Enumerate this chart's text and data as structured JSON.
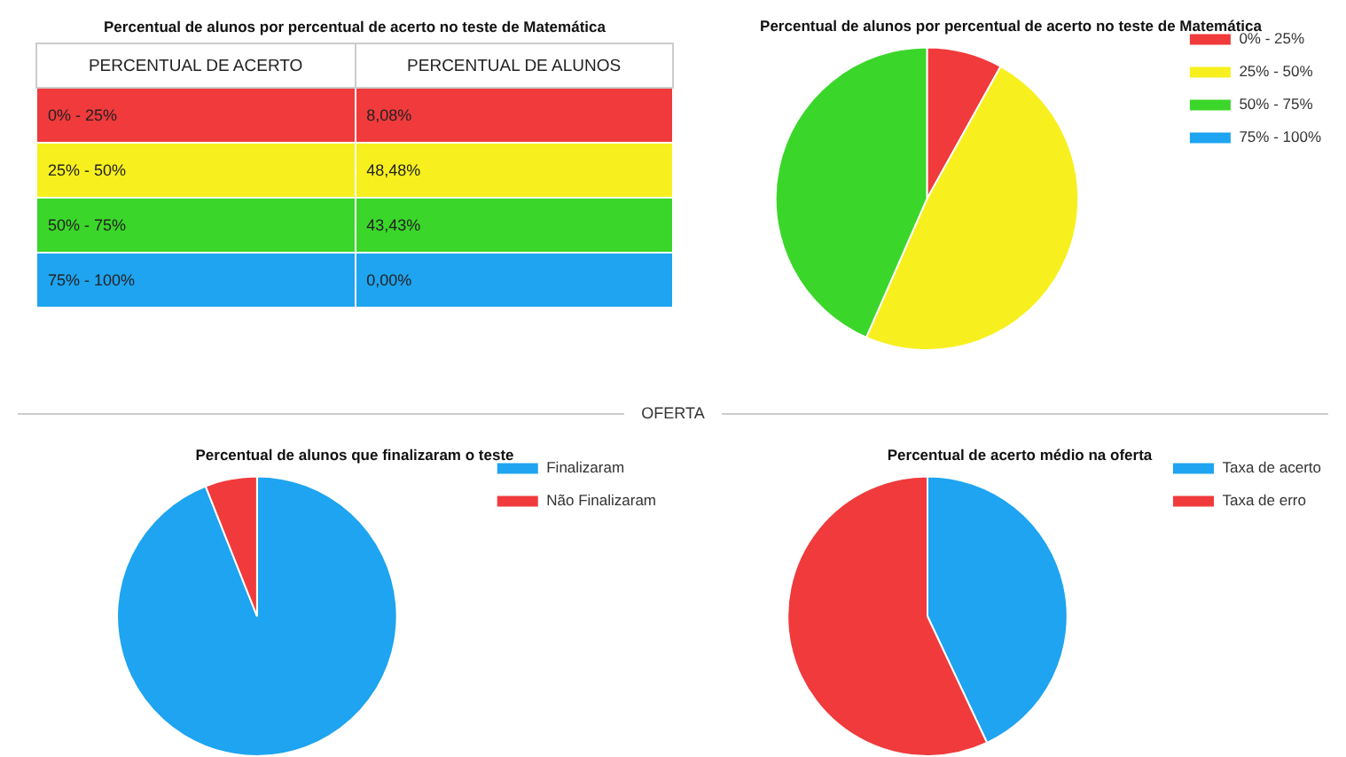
{
  "chart_data": [
    {
      "type": "other",
      "title": "Percentual de alunos por percentual de acerto no teste de Matemática",
      "annotations": [
        "PERCENTUAL DE ACERTO",
        "PERCENTUAL DE ALUNOS"
      ],
      "categories": [
        "0% - 25%",
        "25% - 50%",
        "50% - 75%",
        "75% - 100%"
      ],
      "value_labels": [
        "8,08%",
        "48,48%",
        "43,43%",
        "0,00%"
      ],
      "colors": [
        "#f03a3c",
        "#f7f01e",
        "#3bd62a",
        "#1ea4f0"
      ]
    },
    {
      "type": "pie",
      "title": "Percentual de alunos por percentual de acerto no teste de Matemática",
      "categories": [
        "0% - 25%",
        "25% - 50%",
        "50% - 75%",
        "75% - 100%"
      ],
      "values": [
        8.08,
        48.48,
        43.43,
        0
      ],
      "colors": [
        "#f03a3c",
        "#f7f01e",
        "#3bd62a",
        "#1ea4f0"
      ],
      "legend": "right"
    },
    {
      "type": "pie",
      "title": "Percentual de alunos que finalizaram o teste",
      "annotations": [
        "OFERTA"
      ],
      "categories": [
        "Finalizaram",
        "Não Finalizaram"
      ],
      "values": [
        94,
        6
      ],
      "colors": [
        "#1ea4f0",
        "#f03a3c"
      ],
      "legend": "right"
    },
    {
      "type": "pie",
      "title": "Percentual de acerto médio na oferta",
      "categories": [
        "Taxa de acerto",
        "Taxa de erro"
      ],
      "values": [
        43,
        57
      ],
      "colors": [
        "#1ea4f0",
        "#f03a3c"
      ],
      "legend": "right"
    }
  ]
}
